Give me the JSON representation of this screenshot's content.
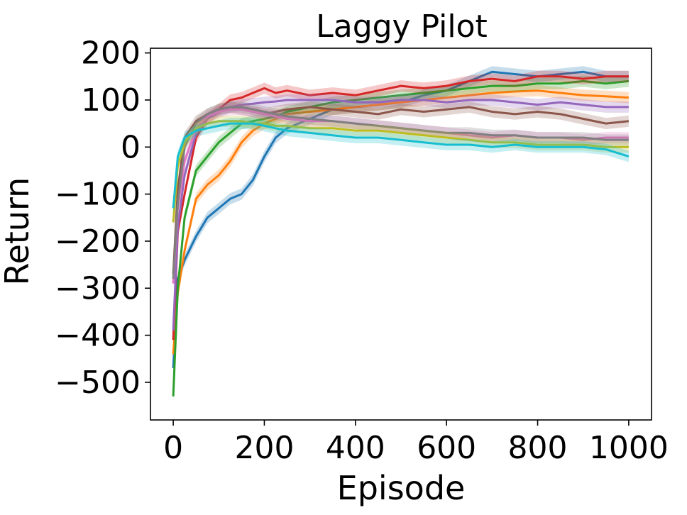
{
  "chart_data": {
    "type": "line",
    "title": "Laggy Pilot",
    "xlabel": "Episode",
    "ylabel": "Return",
    "xlim": [
      -50,
      1050
    ],
    "ylim": [
      -580,
      210
    ],
    "xticks": [
      0,
      200,
      400,
      600,
      800,
      1000
    ],
    "yticks": [
      -500,
      -400,
      -300,
      -200,
      -100,
      0,
      100,
      200
    ],
    "xtick_labels": [
      "0",
      "200",
      "400",
      "600",
      "800",
      "1000"
    ],
    "ytick_labels": [
      "−500",
      "−400",
      "−300",
      "−200",
      "−100",
      "0",
      "100",
      "200"
    ],
    "grid": false,
    "series": [
      {
        "color": "#1f77b4",
        "x": [
          0,
          10,
          25,
          50,
          75,
          100,
          125,
          150,
          175,
          200,
          225,
          250,
          300,
          350,
          400,
          450,
          500,
          550,
          600,
          650,
          700,
          750,
          800,
          850,
          900,
          950,
          1000
        ],
        "y": [
          -470,
          -280,
          -240,
          -190,
          -150,
          -130,
          -110,
          -100,
          -70,
          -20,
          20,
          40,
          60,
          80,
          85,
          90,
          95,
          110,
          120,
          140,
          160,
          155,
          150,
          155,
          160,
          150,
          150
        ]
      },
      {
        "color": "#ff7f0e",
        "x": [
          0,
          10,
          25,
          50,
          75,
          100,
          125,
          150,
          175,
          200,
          225,
          250,
          300,
          350,
          400,
          450,
          500,
          550,
          600,
          650,
          700,
          750,
          800,
          850,
          900,
          950,
          1000
        ],
        "y": [
          -440,
          -310,
          -220,
          -110,
          -80,
          -60,
          -30,
          10,
          35,
          50,
          60,
          70,
          75,
          80,
          85,
          90,
          95,
          100,
          105,
          110,
          115,
          118,
          120,
          115,
          110,
          108,
          105
        ]
      },
      {
        "color": "#2ca02c",
        "x": [
          0,
          10,
          25,
          50,
          75,
          100,
          125,
          150,
          175,
          200,
          225,
          250,
          300,
          350,
          400,
          450,
          500,
          550,
          600,
          650,
          700,
          750,
          800,
          850,
          900,
          950,
          1000
        ],
        "y": [
          -530,
          -300,
          -150,
          -50,
          -20,
          10,
          30,
          50,
          55,
          60,
          65,
          75,
          85,
          95,
          100,
          105,
          110,
          115,
          120,
          125,
          130,
          130,
          135,
          135,
          140,
          135,
          140
        ]
      },
      {
        "color": "#d62728",
        "x": [
          0,
          10,
          25,
          50,
          75,
          100,
          125,
          150,
          175,
          200,
          225,
          250,
          300,
          350,
          400,
          450,
          500,
          550,
          600,
          650,
          700,
          750,
          800,
          850,
          900,
          950,
          1000
        ],
        "y": [
          -410,
          -180,
          -100,
          20,
          60,
          80,
          100,
          105,
          115,
          125,
          115,
          120,
          110,
          115,
          110,
          120,
          130,
          125,
          130,
          140,
          145,
          140,
          150,
          150,
          145,
          150,
          150
        ]
      },
      {
        "color": "#9467bd",
        "x": [
          0,
          10,
          25,
          50,
          75,
          100,
          125,
          150,
          175,
          200,
          225,
          250,
          300,
          350,
          400,
          450,
          500,
          550,
          600,
          650,
          700,
          750,
          800,
          850,
          900,
          950,
          1000
        ],
        "y": [
          -390,
          -170,
          -60,
          30,
          60,
          75,
          85,
          90,
          92,
          95,
          97,
          100,
          100,
          100,
          95,
          95,
          100,
          100,
          95,
          100,
          100,
          95,
          90,
          95,
          90,
          85,
          85
        ]
      },
      {
        "color": "#8c564b",
        "x": [
          0,
          10,
          25,
          50,
          75,
          100,
          125,
          150,
          175,
          200,
          225,
          250,
          300,
          350,
          400,
          450,
          500,
          550,
          600,
          650,
          700,
          750,
          800,
          850,
          900,
          950,
          1000
        ],
        "y": [
          -270,
          -90,
          20,
          55,
          70,
          80,
          85,
          80,
          75,
          70,
          75,
          80,
          85,
          80,
          75,
          70,
          80,
          75,
          80,
          85,
          75,
          70,
          75,
          70,
          60,
          50,
          55
        ]
      },
      {
        "color": "#e377c2",
        "x": [
          0,
          10,
          25,
          50,
          75,
          100,
          125,
          150,
          175,
          200,
          225,
          250,
          300,
          350,
          400,
          450,
          500,
          550,
          600,
          650,
          700,
          750,
          800,
          850,
          900,
          950,
          1000
        ],
        "y": [
          -290,
          -130,
          -30,
          40,
          65,
          75,
          80,
          80,
          75,
          70,
          65,
          60,
          55,
          55,
          50,
          45,
          40,
          35,
          30,
          25,
          20,
          25,
          20,
          20,
          15,
          20,
          20
        ]
      },
      {
        "color": "#7f7f7f",
        "x": [
          0,
          10,
          25,
          50,
          75,
          100,
          125,
          150,
          175,
          200,
          225,
          250,
          300,
          350,
          400,
          450,
          500,
          550,
          600,
          650,
          700,
          750,
          800,
          850,
          900,
          950,
          1000
        ],
        "y": [
          -280,
          -120,
          0,
          50,
          70,
          80,
          85,
          85,
          80,
          75,
          70,
          65,
          60,
          55,
          50,
          45,
          40,
          35,
          30,
          30,
          25,
          25,
          20,
          20,
          20,
          15,
          15
        ]
      },
      {
        "color": "#bcbd22",
        "x": [
          0,
          10,
          25,
          50,
          75,
          100,
          125,
          150,
          175,
          200,
          225,
          250,
          300,
          350,
          400,
          450,
          500,
          550,
          600,
          650,
          700,
          750,
          800,
          850,
          900,
          950,
          1000
        ],
        "y": [
          -160,
          -40,
          10,
          40,
          50,
          55,
          55,
          55,
          50,
          50,
          45,
          45,
          40,
          40,
          35,
          35,
          30,
          25,
          20,
          15,
          10,
          10,
          5,
          5,
          5,
          0,
          0
        ]
      },
      {
        "color": "#17becf",
        "x": [
          0,
          10,
          25,
          50,
          75,
          100,
          125,
          150,
          175,
          200,
          225,
          250,
          300,
          350,
          400,
          450,
          500,
          550,
          600,
          650,
          700,
          750,
          800,
          850,
          900,
          950,
          1000
        ],
        "y": [
          -130,
          -20,
          20,
          35,
          40,
          45,
          50,
          50,
          50,
          45,
          40,
          35,
          30,
          25,
          20,
          20,
          15,
          10,
          5,
          5,
          0,
          5,
          0,
          0,
          0,
          -5,
          -20
        ]
      }
    ]
  }
}
